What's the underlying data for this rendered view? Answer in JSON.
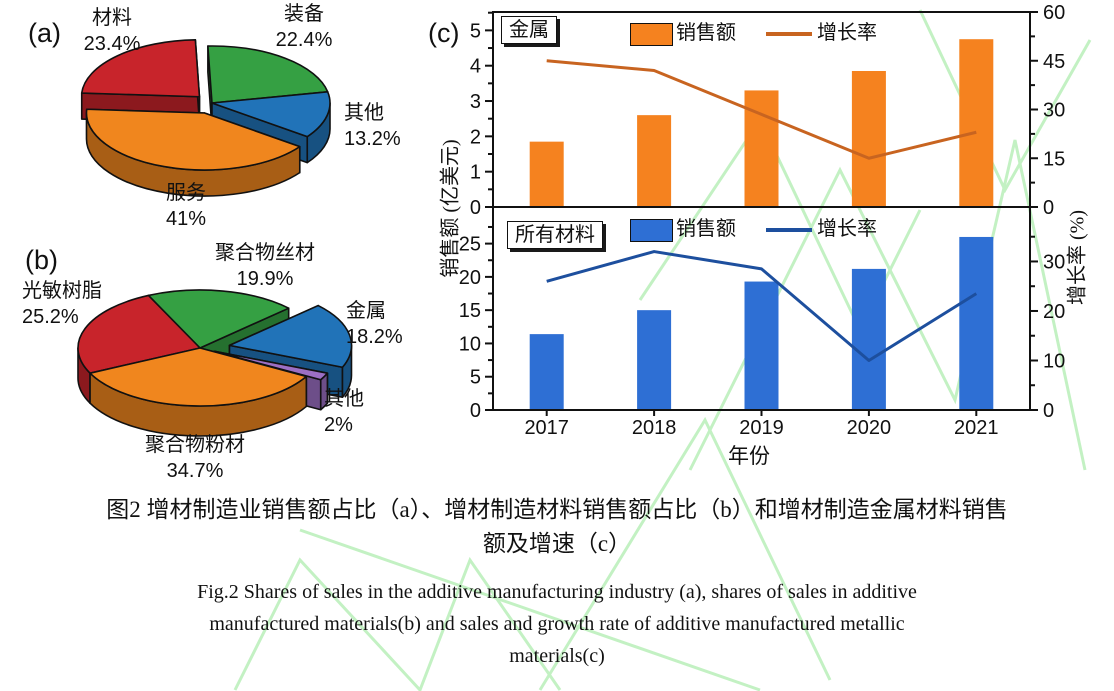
{
  "chart_data": [
    {
      "id": "pie-a",
      "type": "pie",
      "panel_label": "(a)",
      "description": "Shares of sales in the additive manufacturing industry",
      "slices": [
        {
          "name": "装备",
          "value": 22.4,
          "pct_label": "22.4%",
          "color": "#35A043"
        },
        {
          "name": "其他",
          "value": 13.2,
          "pct_label": "13.2%",
          "color": "#2173B8"
        },
        {
          "name": "服务",
          "value": 41.0,
          "pct_label": "41%",
          "color": "#F0861E"
        },
        {
          "name": "材料",
          "value": 23.4,
          "pct_label": "23.4%",
          "color": "#C8242B"
        }
      ]
    },
    {
      "id": "pie-b",
      "type": "pie",
      "panel_label": "(b)",
      "description": "Shares of sales in additive manufactured materials",
      "slices": [
        {
          "name": "聚合物丝材",
          "value": 19.9,
          "pct_label": "19.9%",
          "color": "#35A043"
        },
        {
          "name": "金属",
          "value": 18.2,
          "pct_label": "18.2%",
          "color": "#2173B8"
        },
        {
          "name": "其他",
          "value": 2.0,
          "pct_label": "2%",
          "color": "#9C6FC4"
        },
        {
          "name": "聚合物粉材",
          "value": 34.7,
          "pct_label": "34.7%",
          "color": "#F0861E"
        },
        {
          "name": "光敏树脂",
          "value": 25.2,
          "pct_label": "25.2%",
          "color": "#C8242B"
        }
      ]
    },
    {
      "id": "combo-c",
      "type": "bar",
      "panel_label": "(c)",
      "xlabel": "年份",
      "categories": [
        "2017",
        "2018",
        "2019",
        "2020",
        "2021"
      ],
      "left_axis_title": "销售额 (亿美元)",
      "right_axis_title": "增长率 (%)",
      "panels": [
        {
          "box_label": "金属",
          "bar_color": "#F5821F",
          "line_color": "#C86420",
          "legend": {
            "bar": "销售额",
            "line": "增长率"
          },
          "bars": {
            "name": "销售额",
            "values": [
              1.85,
              2.6,
              3.3,
              3.85,
              4.75
            ]
          },
          "line": {
            "name": "增长率",
            "values": [
              45,
              42,
              28.5,
              15,
              23
            ]
          },
          "left_ticks": [
            0,
            1,
            2,
            3,
            4,
            5
          ],
          "left_max": 5.52,
          "right_ticks": [
            0,
            15,
            30,
            45,
            60
          ],
          "right_max": 60
        },
        {
          "box_label": "所有材料",
          "bar_color": "#2E6FD4",
          "line_color": "#1D4F9E",
          "legend": {
            "bar": "销售额",
            "line": "增长率"
          },
          "bars": {
            "name": "销售额",
            "values": [
              11.4,
              15,
              19.3,
              21.2,
              26
            ]
          },
          "line": {
            "name": "增长率",
            "values": [
              26,
              32,
              28.5,
              10,
              23.5
            ]
          },
          "left_ticks": [
            0,
            5,
            10,
            15,
            20,
            25
          ],
          "left_max": 30.5,
          "right_ticks": [
            0,
            10,
            20,
            30
          ],
          "right_max": 41
        }
      ]
    }
  ],
  "captions": {
    "cn_line1": "图2  增材制造业销售额占比（a）、增材制造材料销售额占比（b）和增材制造金属材料销售",
    "cn_line2": "额及增速（c）",
    "en_line1": "Fig.2 Shares of sales in the additive manufacturing industry (a), shares of sales in additive",
    "en_line2": "manufactured materials(b) and sales and growth rate of additive manufactured metallic",
    "en_line3": "materials(c)"
  },
  "watermark_color": "#b9efb9"
}
